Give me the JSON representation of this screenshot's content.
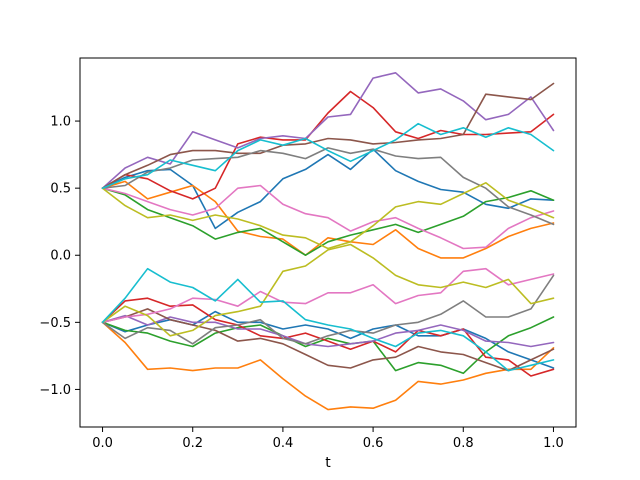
{
  "chart_data": {
    "type": "line",
    "title": "",
    "xlabel": "t",
    "ylabel": "",
    "xlim": [
      -0.05,
      1.05
    ],
    "ylim": [
      -1.28,
      1.47
    ],
    "xticks": [
      0.0,
      0.2,
      0.4,
      0.6,
      0.8,
      1.0
    ],
    "xtick_labels": [
      "0.0",
      "0.2",
      "0.4",
      "0.6",
      "0.8",
      "1.0"
    ],
    "yticks": [
      -1.0,
      -0.5,
      0.0,
      0.5,
      1.0
    ],
    "ytick_labels": [
      "−1.0",
      "−0.5",
      "0.0",
      "0.5",
      "1.0"
    ],
    "grid": false,
    "legend": "none",
    "t": [
      0.0,
      0.05,
      0.1,
      0.15,
      0.2,
      0.25,
      0.3,
      0.35,
      0.4,
      0.45,
      0.5,
      0.55,
      0.6,
      0.65,
      0.7,
      0.75,
      0.8,
      0.85,
      0.9,
      0.95,
      1.0
    ],
    "series": [
      {
        "color": "#1f77b4",
        "values": [
          0.5,
          0.58,
          0.63,
          0.64,
          0.52,
          0.2,
          0.32,
          0.4,
          0.57,
          0.64,
          0.75,
          0.64,
          0.79,
          0.63,
          0.55,
          0.49,
          0.47,
          0.38,
          0.35,
          0.42,
          0.41
        ]
      },
      {
        "color": "#ff7f0e",
        "values": [
          0.5,
          0.55,
          0.42,
          0.47,
          0.52,
          0.4,
          0.18,
          0.14,
          0.12,
          0.0,
          0.13,
          0.1,
          0.08,
          0.19,
          0.05,
          -0.02,
          -0.02,
          0.05,
          0.14,
          0.2,
          0.24
        ]
      },
      {
        "color": "#2ca02c",
        "values": [
          0.5,
          0.45,
          0.34,
          0.28,
          0.22,
          0.12,
          0.17,
          0.2,
          0.1,
          0.0,
          0.1,
          0.15,
          0.19,
          0.23,
          0.17,
          0.23,
          0.29,
          0.4,
          0.43,
          0.48,
          0.41
        ]
      },
      {
        "color": "#d62728",
        "values": [
          0.5,
          0.6,
          0.57,
          0.48,
          0.42,
          0.5,
          0.83,
          0.88,
          0.86,
          0.86,
          1.06,
          1.22,
          1.1,
          0.92,
          0.87,
          0.93,
          0.9,
          0.9,
          0.91,
          0.92,
          1.05
        ]
      },
      {
        "color": "#9467bd",
        "values": [
          0.5,
          0.65,
          0.73,
          0.68,
          0.92,
          0.86,
          0.8,
          0.87,
          0.89,
          0.87,
          1.03,
          1.05,
          1.32,
          1.36,
          1.21,
          1.24,
          1.15,
          1.01,
          1.05,
          1.18,
          0.93
        ]
      },
      {
        "color": "#8c564b",
        "values": [
          0.5,
          0.6,
          0.67,
          0.75,
          0.78,
          0.78,
          0.76,
          0.76,
          0.82,
          0.83,
          0.87,
          0.86,
          0.83,
          0.84,
          0.86,
          0.87,
          0.9,
          1.2,
          1.18,
          1.16,
          1.28
        ]
      },
      {
        "color": "#e377c2",
        "values": [
          0.5,
          0.46,
          0.4,
          0.34,
          0.3,
          0.35,
          0.5,
          0.52,
          0.38,
          0.31,
          0.28,
          0.18,
          0.25,
          0.28,
          0.2,
          0.13,
          0.05,
          0.06,
          0.2,
          0.28,
          0.33
        ]
      },
      {
        "color": "#7f7f7f",
        "values": [
          0.5,
          0.52,
          0.62,
          0.65,
          0.71,
          0.72,
          0.73,
          0.78,
          0.76,
          0.72,
          0.8,
          0.76,
          0.79,
          0.74,
          0.72,
          0.73,
          0.58,
          0.5,
          0.36,
          0.3,
          0.23
        ]
      },
      {
        "color": "#bcbd22",
        "values": [
          0.5,
          0.37,
          0.28,
          0.3,
          0.26,
          0.3,
          0.27,
          0.22,
          0.15,
          0.13,
          0.05,
          0.1,
          0.22,
          0.36,
          0.4,
          0.38,
          0.46,
          0.54,
          0.41,
          0.35,
          0.28
        ]
      },
      {
        "color": "#17becf",
        "values": [
          0.5,
          0.57,
          0.6,
          0.71,
          0.67,
          0.63,
          0.78,
          0.86,
          0.82,
          0.87,
          0.78,
          0.7,
          0.78,
          0.86,
          0.98,
          0.9,
          0.95,
          0.88,
          0.95,
          0.9,
          0.78
        ]
      },
      {
        "color": "#1f77b4",
        "values": [
          -0.5,
          -0.57,
          -0.52,
          -0.48,
          -0.52,
          -0.42,
          -0.5,
          -0.5,
          -0.55,
          -0.52,
          -0.55,
          -0.62,
          -0.55,
          -0.52,
          -0.6,
          -0.6,
          -0.55,
          -0.62,
          -0.72,
          -0.78,
          -0.84
        ]
      },
      {
        "color": "#ff7f0e",
        "values": [
          -0.5,
          -0.65,
          -0.85,
          -0.84,
          -0.86,
          -0.84,
          -0.84,
          -0.78,
          -0.92,
          -1.05,
          -1.15,
          -1.13,
          -1.14,
          -1.08,
          -0.94,
          -0.96,
          -0.93,
          -0.88,
          -0.85,
          -0.85,
          -0.69
        ]
      },
      {
        "color": "#2ca02c",
        "values": [
          -0.5,
          -0.56,
          -0.58,
          -0.64,
          -0.68,
          -0.58,
          -0.54,
          -0.52,
          -0.6,
          -0.68,
          -0.62,
          -0.66,
          -0.64,
          -0.86,
          -0.8,
          -0.82,
          -0.88,
          -0.72,
          -0.6,
          -0.54,
          -0.46
        ]
      },
      {
        "color": "#d62728",
        "values": [
          -0.5,
          -0.34,
          -0.32,
          -0.38,
          -0.37,
          -0.48,
          -0.52,
          -0.6,
          -0.62,
          -0.58,
          -0.64,
          -0.7,
          -0.64,
          -0.72,
          -0.56,
          -0.6,
          -0.55,
          -0.76,
          -0.78,
          -0.9,
          -0.85
        ]
      },
      {
        "color": "#9467bd",
        "values": [
          -0.5,
          -0.45,
          -0.52,
          -0.46,
          -0.5,
          -0.5,
          -0.55,
          -0.55,
          -0.6,
          -0.66,
          -0.68,
          -0.66,
          -0.64,
          -0.58,
          -0.56,
          -0.52,
          -0.56,
          -0.64,
          -0.65,
          -0.68,
          -0.65
        ]
      },
      {
        "color": "#8c564b",
        "values": [
          -0.5,
          -0.46,
          -0.4,
          -0.48,
          -0.52,
          -0.56,
          -0.64,
          -0.62,
          -0.66,
          -0.74,
          -0.82,
          -0.84,
          -0.78,
          -0.76,
          -0.68,
          -0.72,
          -0.74,
          -0.8,
          -0.86,
          -0.78,
          -0.7
        ]
      },
      {
        "color": "#e377c2",
        "values": [
          -0.5,
          -0.46,
          -0.44,
          -0.4,
          -0.32,
          -0.33,
          -0.38,
          -0.27,
          -0.35,
          -0.36,
          -0.28,
          -0.28,
          -0.22,
          -0.36,
          -0.3,
          -0.28,
          -0.12,
          -0.1,
          -0.22,
          -0.18,
          -0.14
        ]
      },
      {
        "color": "#7f7f7f",
        "values": [
          -0.5,
          -0.62,
          -0.54,
          -0.56,
          -0.66,
          -0.54,
          -0.52,
          -0.48,
          -0.62,
          -0.66,
          -0.6,
          -0.56,
          -0.58,
          -0.52,
          -0.5,
          -0.44,
          -0.34,
          -0.46,
          -0.46,
          -0.4,
          -0.15
        ]
      },
      {
        "color": "#bcbd22",
        "values": [
          -0.5,
          -0.38,
          -0.45,
          -0.6,
          -0.56,
          -0.45,
          -0.42,
          -0.38,
          -0.12,
          -0.08,
          0.04,
          0.08,
          -0.02,
          -0.15,
          -0.22,
          -0.24,
          -0.2,
          -0.24,
          -0.18,
          -0.36,
          -0.32
        ]
      },
      {
        "color": "#17becf",
        "values": [
          -0.5,
          -0.32,
          -0.1,
          -0.2,
          -0.24,
          -0.34,
          -0.18,
          -0.35,
          -0.34,
          -0.48,
          -0.52,
          -0.55,
          -0.62,
          -0.68,
          -0.58,
          -0.56,
          -0.6,
          -0.72,
          -0.86,
          -0.82,
          -0.78
        ]
      }
    ]
  }
}
